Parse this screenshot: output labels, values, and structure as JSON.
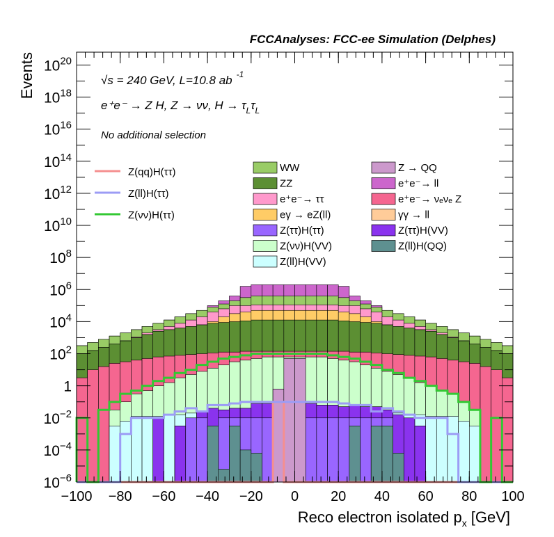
{
  "chart_data": {
    "type": "area",
    "title": "FCCAnalyses: FCC-ee Simulation (Delphes)",
    "xlabel": "Reco electron isolated p",
    "xlabel_sub": "x",
    "xlabel_unit": "[GeV]",
    "ylabel": "Events",
    "xlim": [
      -100,
      100
    ],
    "ylim_log10": [
      -6,
      20.8
    ],
    "y_scale": "log",
    "grid": false,
    "x_ticks": [
      -100,
      -80,
      -60,
      -40,
      -20,
      0,
      20,
      40,
      60,
      80,
      100
    ],
    "y_ticks_exponent": [
      -6,
      -4,
      -2,
      0,
      2,
      4,
      6,
      8,
      10,
      12,
      14,
      16,
      18,
      20
    ],
    "annotations": {
      "energy": "s = 240 GeV, L=10.8 ab",
      "energy_sup": "-1",
      "energy_sqrt": "√",
      "process": "e⁺e⁻ → Z H, Z → νν, H → τ",
      "process_sub1": "L",
      "process_tau2": "τ",
      "process_sub2": "L",
      "selection": "No additional selection"
    },
    "legend_position": "upper-middle",
    "signal_legend": [
      {
        "label": "Z(qq)H(ττ)",
        "color": "#f58f8f"
      },
      {
        "label": "Z(ll)H(ττ)",
        "color": "#9c9cf5"
      },
      {
        "label": "Z(νν)H(ττ)",
        "color": "#33c833"
      }
    ],
    "background_legend": [
      {
        "label": "WW",
        "color": "#99cc66"
      },
      {
        "label": "Z → QQ",
        "color": "#cc99cc"
      },
      {
        "label": "ZZ",
        "color": "#5c8f33"
      },
      {
        "label": "e⁺e⁻→ ll",
        "color": "#cc66cc"
      },
      {
        "label": "e⁺e⁻→ ττ",
        "color": "#ff99cc"
      },
      {
        "label": "e⁺e⁻→ νₑνₑ Z",
        "color": "#f56690"
      },
      {
        "label": "eγ → eZ(ll)",
        "color": "#ffcc66"
      },
      {
        "label": "γγ → ll",
        "color": "#ffcc99"
      },
      {
        "label": "Z(ττ)H(ττ)",
        "color": "#9966ff"
      },
      {
        "label": "Z(ττ)H(VV)",
        "color": "#8a33ee"
      },
      {
        "label": "Z(νν)H(VV)",
        "color": "#ccffcc"
      },
      {
        "label": "Z(ll)H(QQ)",
        "color": "#5e9090"
      },
      {
        "label": "Z(ll)H(VV)",
        "color": "#ccffff"
      }
    ],
    "bin_edges_note": "40 bins of 5 GeV from -100 to 100",
    "x_bins": [
      -97.5,
      -92.5,
      -87.5,
      -82.5,
      -77.5,
      -72.5,
      -67.5,
      -62.5,
      -57.5,
      -52.5,
      -47.5,
      -42.5,
      -37.5,
      -32.5,
      -27.5,
      -22.5,
      -17.5,
      -12.5,
      -7.5,
      -2.5,
      2.5,
      7.5,
      12.5,
      17.5,
      22.5,
      27.5,
      32.5,
      37.5,
      42.5,
      47.5,
      52.5,
      57.5,
      62.5,
      67.5,
      72.5,
      77.5,
      82.5,
      87.5,
      92.5,
      97.5
    ],
    "stack_log10": [
      {
        "name": "Z(ll)H(VV)",
        "color": "#ccffff",
        "values": [
          -6.0,
          -6.0,
          -6.0,
          -2.5,
          -2.2,
          -1.9,
          -1.9,
          -1.9,
          -1.8,
          -1.8,
          -1.7,
          -1.7,
          -1.6,
          -1.6,
          -1.5,
          -1.5,
          -1.5,
          -1.4,
          -1.4,
          -1.4,
          -1.4,
          -1.4,
          -1.4,
          -1.5,
          -1.5,
          -1.5,
          -1.6,
          -1.6,
          -1.7,
          -1.7,
          -1.8,
          -1.8,
          -1.9,
          -1.9,
          -1.9,
          -2.2,
          -2.5,
          -6.0,
          -6.0,
          -6.0
        ]
      },
      {
        "name": "Z(νν)H(VV)",
        "color": "#ccffcc",
        "values": [
          -6.0,
          -6.0,
          -6.0,
          -1.5,
          -1.0,
          -0.5,
          -0.3,
          0.0,
          0.2,
          0.5,
          0.7,
          0.9,
          1.1,
          1.3,
          1.5,
          1.6,
          1.7,
          1.8,
          1.8,
          1.8,
          1.8,
          1.8,
          1.8,
          1.7,
          1.6,
          1.5,
          1.3,
          1.1,
          0.9,
          0.7,
          0.5,
          0.2,
          0.0,
          -0.3,
          -0.5,
          -1.0,
          -1.5,
          -6.0,
          -6.0,
          -6.0
        ]
      },
      {
        "name": "e⁺e⁻→ νₑνₑ Z",
        "color": "#f56690",
        "values": [
          0.5,
          1.0,
          1.2,
          1.4,
          1.5,
          1.6,
          1.7,
          1.8,
          1.85,
          1.9,
          1.95,
          2.0,
          2.05,
          2.1,
          2.1,
          2.15,
          2.15,
          2.15,
          2.15,
          2.15,
          2.15,
          2.15,
          2.15,
          2.15,
          2.15,
          2.1,
          2.1,
          2.05,
          2.0,
          1.95,
          1.9,
          1.85,
          1.8,
          1.7,
          1.6,
          1.5,
          1.4,
          1.2,
          1.0,
          0.5
        ]
      },
      {
        "name": "ZZ",
        "color": "#5c8f33",
        "values": [
          2.0,
          2.2,
          2.4,
          2.6,
          2.8,
          3.0,
          3.2,
          3.4,
          3.5,
          3.6,
          3.7,
          3.8,
          3.9,
          3.95,
          4.0,
          4.05,
          4.1,
          4.1,
          4.1,
          4.1,
          4.1,
          4.1,
          4.1,
          4.1,
          4.05,
          4.0,
          3.95,
          3.9,
          3.8,
          3.7,
          3.6,
          3.5,
          3.4,
          3.2,
          3.0,
          2.8,
          2.6,
          2.4,
          2.2,
          2.0
        ]
      },
      {
        "name": "eγ → eZ(ll)",
        "color": "#ffcc66",
        "values": [
          2.0,
          2.2,
          2.4,
          2.6,
          2.8,
          3.0,
          3.2,
          3.4,
          3.5,
          3.6,
          3.7,
          3.8,
          4.0,
          4.3,
          4.5,
          4.6,
          4.7,
          4.7,
          4.7,
          4.7,
          4.7,
          4.7,
          4.7,
          4.7,
          4.6,
          4.5,
          4.3,
          4.0,
          3.8,
          3.7,
          3.6,
          3.5,
          3.4,
          3.2,
          3.0,
          2.8,
          2.6,
          2.4,
          2.2,
          2.0
        ]
      },
      {
        "name": "e⁺e⁻→ ττ",
        "color": "#ff99cc",
        "values": [
          2.0,
          2.2,
          2.4,
          2.6,
          2.8,
          3.05,
          3.3,
          3.5,
          3.7,
          3.9,
          4.1,
          4.3,
          4.6,
          4.8,
          5.0,
          5.0,
          5.05,
          5.05,
          5.05,
          5.05,
          5.05,
          5.05,
          5.05,
          5.05,
          5.0,
          5.0,
          4.8,
          4.6,
          4.3,
          4.1,
          3.9,
          3.7,
          3.5,
          3.3,
          3.05,
          2.8,
          2.6,
          2.4,
          2.2,
          2.0
        ]
      },
      {
        "name": "WW",
        "color": "#99cc66",
        "values": [
          2.5,
          2.7,
          2.9,
          3.1,
          3.3,
          3.5,
          3.7,
          3.9,
          4.1,
          4.3,
          4.5,
          4.7,
          4.9,
          5.1,
          5.3,
          5.5,
          5.6,
          5.6,
          5.6,
          5.6,
          5.6,
          5.6,
          5.6,
          5.6,
          5.5,
          5.3,
          5.1,
          4.9,
          4.7,
          4.5,
          4.3,
          4.1,
          3.9,
          3.7,
          3.5,
          3.3,
          3.1,
          2.9,
          2.7,
          2.5
        ]
      },
      {
        "name": "e⁺e⁻→ ll",
        "color": "#cc66cc",
        "values": [
          2.5,
          2.7,
          2.9,
          3.1,
          3.3,
          3.5,
          3.7,
          3.9,
          4.1,
          4.3,
          4.5,
          4.7,
          5.0,
          5.3,
          5.6,
          6.2,
          6.3,
          6.3,
          6.3,
          6.3,
          6.3,
          6.3,
          6.3,
          6.3,
          6.2,
          5.6,
          5.3,
          5.0,
          4.7,
          4.5,
          4.3,
          4.1,
          3.9,
          3.7,
          3.5,
          3.3,
          3.1,
          2.9,
          2.7,
          2.5
        ]
      }
    ],
    "overlay_bins_log10": [
      {
        "name": "Z(ττ)H(VV)",
        "color": "#8a33ee",
        "values": [
          null,
          null,
          null,
          null,
          null,
          null,
          null,
          -2.0,
          null,
          -2.5,
          -2.0,
          -1.6,
          -1.4,
          -1.5,
          -1.4,
          -1.4,
          -1.1,
          -1.1,
          -1.2,
          -1.1,
          -1.1,
          -1.1,
          -1.2,
          -1.2,
          -1.3,
          -1.2,
          -1.3,
          -1.3,
          -1.5,
          -1.8,
          -2.0,
          -2.5,
          null,
          null,
          null,
          null,
          null,
          null,
          null,
          null
        ]
      },
      {
        "name": "Z(ττ)H(ττ)",
        "color": "#9966ff",
        "values": [
          null,
          null,
          null,
          null,
          null,
          null,
          null,
          null,
          null,
          null,
          -2.0,
          -2.0,
          -2.5,
          -2.0,
          -2.0,
          -2.0,
          -2.0,
          -2.0,
          -2.0,
          -2.0,
          -2.0,
          -2.0,
          -2.0,
          -2.0,
          -2.0,
          -2.0,
          -2.0,
          -2.0,
          -2.0,
          null,
          null,
          null,
          null,
          null,
          null,
          null,
          null,
          null,
          null,
          null
        ]
      },
      {
        "name": "Z(ll)H(QQ)",
        "color": "#5e9090",
        "values": [
          null,
          null,
          null,
          null,
          null,
          null,
          null,
          null,
          null,
          null,
          null,
          null,
          -2.5,
          -5.2,
          -2.5,
          -4.0,
          -4.2,
          null,
          null,
          null,
          null,
          null,
          null,
          null,
          null,
          -2.5,
          null,
          -2.5,
          -2.5,
          -4.2,
          null,
          null,
          null,
          null,
          null,
          null,
          null,
          null,
          null,
          null
        ]
      },
      {
        "name": "Z → QQ",
        "color": "#cc99cc",
        "values": [
          null,
          null,
          null,
          null,
          null,
          null,
          null,
          null,
          null,
          null,
          null,
          null,
          null,
          null,
          null,
          null,
          null,
          null,
          -0.2,
          1.7,
          1.7,
          null,
          null,
          null,
          null,
          null,
          null,
          null,
          null,
          null,
          null,
          null,
          null,
          null,
          null,
          null,
          null,
          null,
          null,
          null
        ]
      }
    ],
    "signal_log10": [
      {
        "name": "Z(qq)H(ττ)",
        "color": "#f58f8f",
        "values": [
          null,
          null,
          null,
          null,
          null,
          null,
          null,
          null,
          null,
          null,
          null,
          null,
          null,
          null,
          null,
          null,
          null,
          null,
          -1.0,
          null,
          null,
          null,
          null,
          null,
          null,
          null,
          null,
          null,
          null,
          null,
          null,
          null,
          null,
          null,
          null,
          null,
          null,
          null,
          null,
          null
        ]
      },
      {
        "name": "Z(ll)H(ττ)",
        "color": "#9c9cf5",
        "values": [
          null,
          null,
          null,
          null,
          -3.0,
          -2.0,
          -2.0,
          -2.0,
          -1.8,
          -1.6,
          -1.4,
          -1.6,
          -1.2,
          -1.2,
          -1.1,
          -1.0,
          -1.0,
          -1.0,
          -1.0,
          -1.0,
          -1.0,
          -1.0,
          -1.0,
          -1.0,
          -1.1,
          -1.2,
          -1.2,
          -1.6,
          -1.4,
          -1.6,
          -1.8,
          -2.0,
          -2.0,
          -2.0,
          -3.0,
          null,
          null,
          null,
          null,
          null
        ]
      },
      {
        "name": "Z(νν)H(ττ)",
        "color": "#33c833",
        "values": [
          -2.0,
          null,
          -1.5,
          -1.0,
          -0.5,
          -0.3,
          0.0,
          0.3,
          0.5,
          0.8,
          1.0,
          1.3,
          1.5,
          1.7,
          1.8,
          1.9,
          2.0,
          2.0,
          2.0,
          2.0,
          2.0,
          2.0,
          2.0,
          1.9,
          1.8,
          1.7,
          1.5,
          1.3,
          1.0,
          0.8,
          0.5,
          0.3,
          0.0,
          -0.3,
          -0.5,
          -1.0,
          -1.5,
          null,
          -2.0,
          null
        ]
      }
    ]
  }
}
